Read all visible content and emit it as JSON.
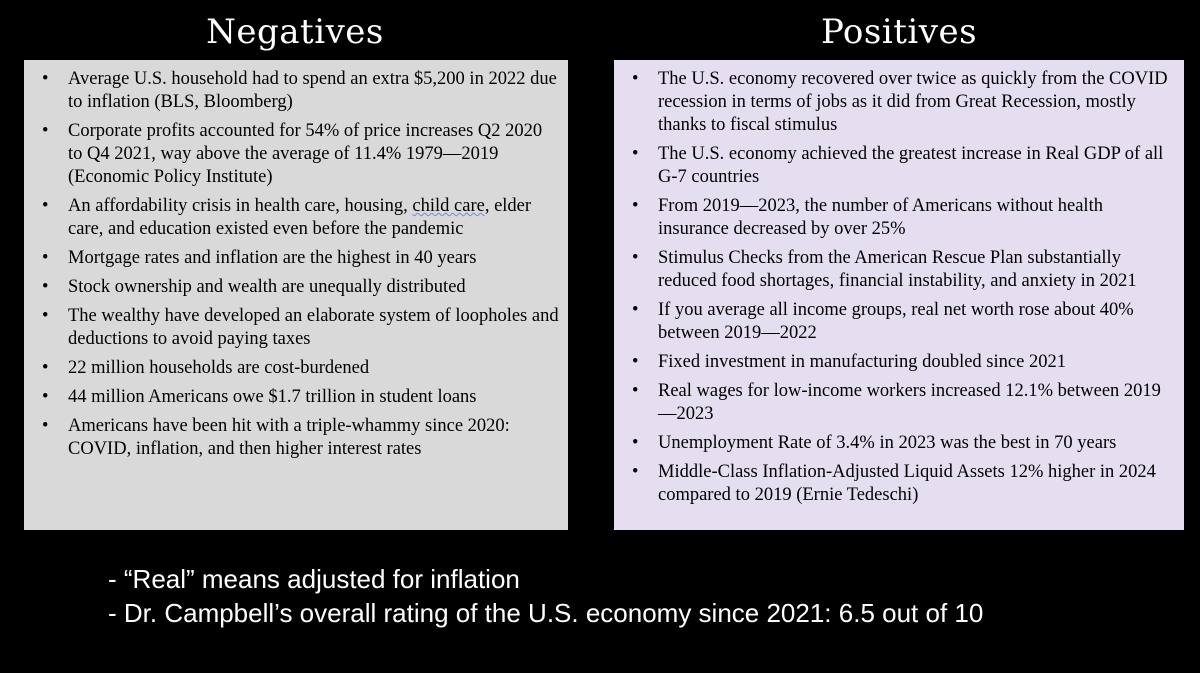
{
  "negatives": {
    "title": "Negatives",
    "bullet": "•",
    "items": [
      "Average U.S. household had to spend an extra $5,200 in 2022 due to inflation (BLS, Bloomberg)",
      "Corporate profits accounted for 54% of price increases Q2 2020 to Q4 2021, way above the average of 11.4% 1979—2019 (Economic Policy Institute)",
      {
        "before": "An affordability crisis in health care, housing, ",
        "underlined": "child care",
        "after": ", elder care, and education existed even before the pandemic"
      },
      "Mortgage rates and inflation are the highest in 40 years",
      "Stock ownership and wealth are unequally distributed",
      "The wealthy have developed an elaborate system of loopholes and deductions to avoid paying taxes",
      "22 million households are cost-burdened",
      "44 million Americans owe $1.7 trillion in student loans",
      "Americans have been hit with a triple-whammy since 2020: COVID, inflation, and then higher interest rates"
    ]
  },
  "positives": {
    "title": "Positives",
    "items": [
      "The U.S. economy recovered over twice as quickly from the COVID recession in terms of jobs as it did from Great Recession, mostly thanks to fiscal stimulus",
      "The U.S. economy achieved the greatest increase in Real GDP of all G-7 countries",
      "From 2019—2023, the number of Americans without health insurance decreased by over 25%",
      "Stimulus Checks from the American Rescue Plan substantially reduced food shortages, financial instability, and anxiety in 2021",
      "If you average all income groups, real net worth rose about 40% between 2019—2022",
      "Fixed investment in manufacturing doubled since 2021",
      "Real wages for low-income workers increased 12.1% between 2019—2023",
      "Unemployment Rate of 3.4% in 2023 was the best in 70 years",
      "Middle-Class Inflation-Adjusted Liquid Assets 12% higher in 2024 compared to 2019 (Ernie Tedeschi)"
    ]
  },
  "footnotes": [
    "- “Real” means adjusted for inflation",
    "- Dr. Campbell’s overall rating of the U.S. economy since 2021: 6.5 out of 10"
  ],
  "colors": {
    "background": "#000000",
    "negatives_panel": "#d9d9d9",
    "positives_panel": "#e4def0",
    "title_text": "#ffffff"
  }
}
